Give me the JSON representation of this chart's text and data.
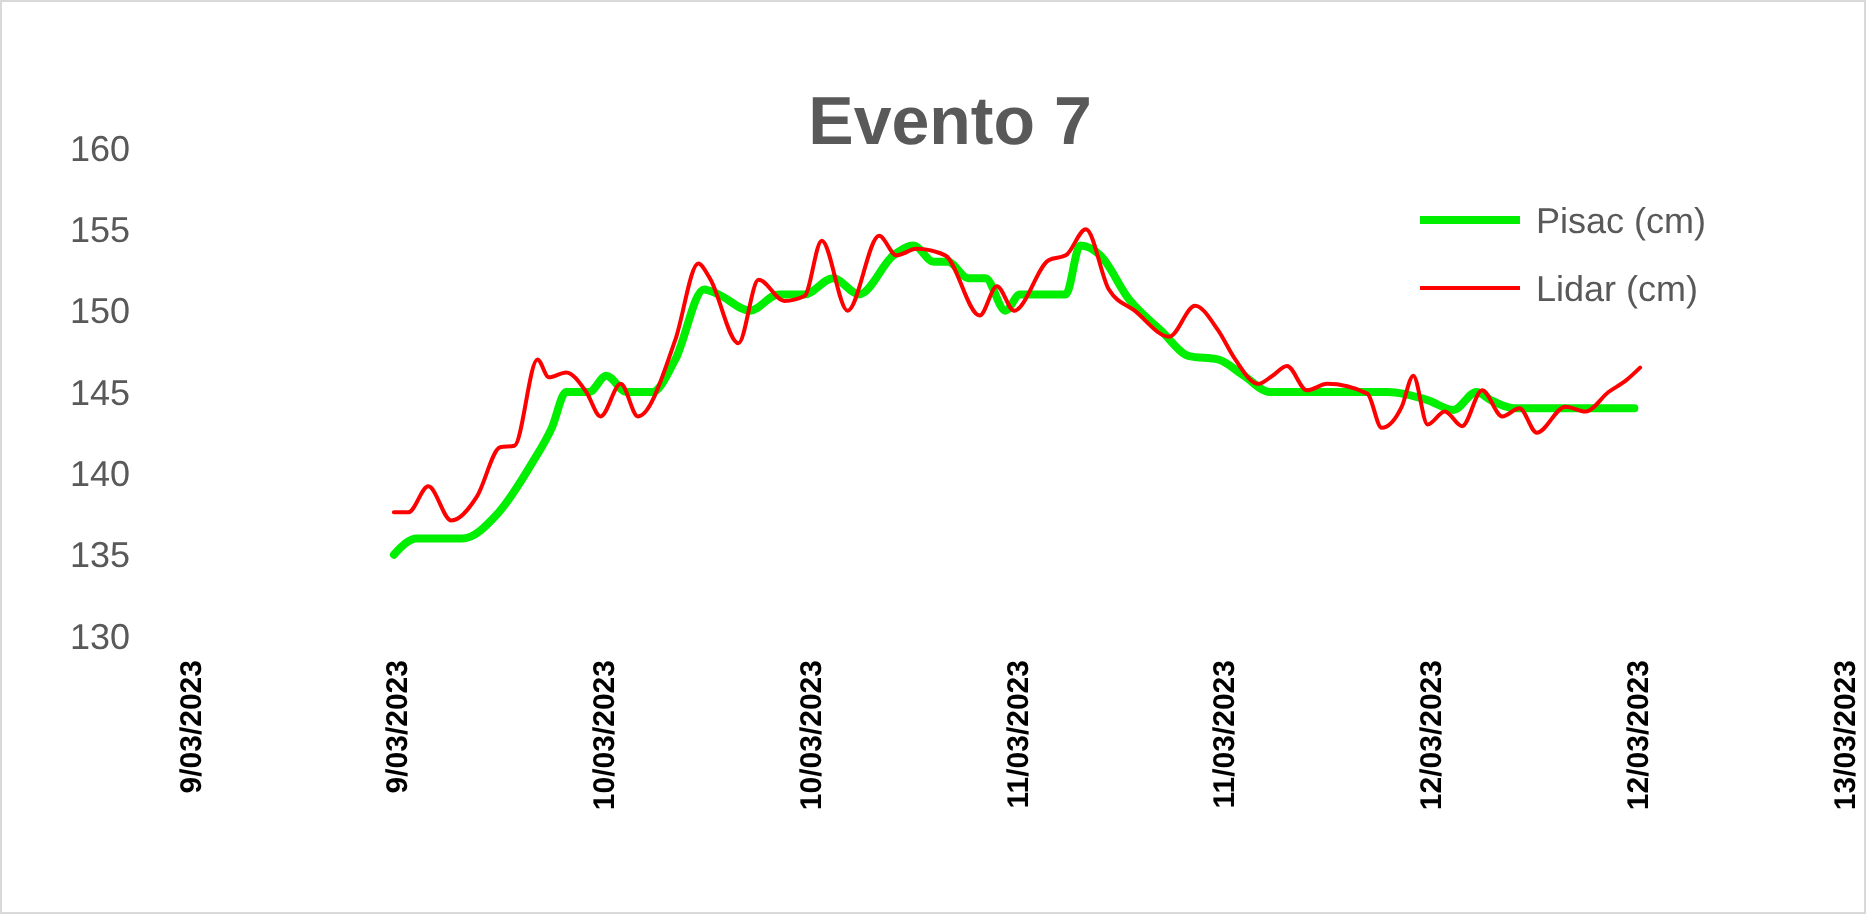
{
  "chart_data": {
    "type": "line",
    "title": "Evento 7",
    "legend": "top right",
    "grid": false,
    "marker": "none",
    "line_style": "solid",
    "xlim": [
      "2023-03-09T00:00",
      "2023-03-13T00:00"
    ],
    "xticks": [
      {
        "value": "2023-03-09T00:00",
        "label": "9/03/2023"
      },
      {
        "value": "2023-03-09T12:00",
        "label": "9/03/2023"
      },
      {
        "value": "2023-03-10T00:00",
        "label": "10/03/2023"
      },
      {
        "value": "2023-03-10T12:00",
        "label": "10/03/2023"
      },
      {
        "value": "2023-03-11T00:00",
        "label": "11/03/2023"
      },
      {
        "value": "2023-03-11T12:00",
        "label": "11/03/2023"
      },
      {
        "value": "2023-03-12T00:00",
        "label": "12/03/2023"
      },
      {
        "value": "2023-03-12T12:00",
        "label": "12/03/2023"
      },
      {
        "value": "2023-03-13T00:00",
        "label": "13/03/2023"
      }
    ],
    "ylim": [
      130,
      160
    ],
    "yticks": [
      130,
      135,
      140,
      145,
      150,
      155,
      160
    ],
    "series": [
      {
        "name": "Pisac (cm)",
        "color": "#00ee00",
        "x": [
          "2023-03-09T11:50",
          "2023-03-09T13:10",
          "2023-03-09T15:50",
          "2023-03-09T17:50",
          "2023-03-09T19:50",
          "2023-03-09T21:00",
          "2023-03-09T21:50",
          "2023-03-09T23:10",
          "2023-03-10T00:10",
          "2023-03-10T01:20",
          "2023-03-10T02:50",
          "2023-03-10T04:10",
          "2023-03-10T05:50",
          "2023-03-10T06:40",
          "2023-03-10T08:30",
          "2023-03-10T10:10",
          "2023-03-10T11:40",
          "2023-03-10T13:20",
          "2023-03-10T14:50",
          "2023-03-10T16:50",
          "2023-03-10T18:00",
          "2023-03-10T19:10",
          "2023-03-10T20:00",
          "2023-03-10T21:10",
          "2023-03-10T22:10",
          "2023-03-10T23:20",
          "2023-03-11T00:10",
          "2023-03-11T02:50",
          "2023-03-11T03:40",
          "2023-03-11T04:50",
          "2023-03-11T06:30",
          "2023-03-11T08:20",
          "2023-03-11T10:00",
          "2023-03-11T11:40",
          "2023-03-11T13:10",
          "2023-03-11T14:40",
          "2023-03-11T16:10",
          "2023-03-11T21:30",
          "2023-03-11T23:50",
          "2023-03-12T01:20",
          "2023-03-12T02:40",
          "2023-03-12T03:30",
          "2023-03-12T04:50",
          "2023-03-12T11:50"
        ],
        "values": [
          135,
          136,
          136,
          137.5,
          140.6,
          142.8,
          145,
          145,
          146,
          145,
          145,
          147,
          151.3,
          151,
          150,
          151,
          151,
          152,
          151,
          153.4,
          154,
          153,
          153,
          152,
          152,
          150,
          151,
          151,
          154,
          153.4,
          150.7,
          148.8,
          147.2,
          147,
          146,
          145,
          145,
          145,
          144.5,
          143.9,
          145,
          144.5,
          144,
          144
        ]
      },
      {
        "name": "Lidar (cm)",
        "color": "#ff0000",
        "x": [
          "2023-03-09T11:50",
          "2023-03-09T12:40",
          "2023-03-09T13:50",
          "2023-03-09T15:10",
          "2023-03-09T16:40",
          "2023-03-09T18:00",
          "2023-03-09T18:50",
          "2023-03-09T20:10",
          "2023-03-09T20:50",
          "2023-03-09T21:50",
          "2023-03-09T23:00",
          "2023-03-09T23:50",
          "2023-03-10T01:00",
          "2023-03-10T02:00",
          "2023-03-10T04:10",
          "2023-03-10T05:30",
          "2023-03-10T06:10",
          "2023-03-10T07:50",
          "2023-03-10T09:00",
          "2023-03-10T10:30",
          "2023-03-10T11:40",
          "2023-03-10T12:40",
          "2023-03-10T14:10",
          "2023-03-10T16:00",
          "2023-03-10T17:00",
          "2023-03-10T18:10",
          "2023-03-10T19:50",
          "2023-03-10T21:50",
          "2023-03-10T22:50",
          "2023-03-10T23:50",
          "2023-03-11T01:50",
          "2023-03-11T02:50",
          "2023-03-11T04:00",
          "2023-03-11T05:20",
          "2023-03-11T06:50",
          "2023-03-11T08:50",
          "2023-03-11T10:20",
          "2023-03-11T11:40",
          "2023-03-11T12:40",
          "2023-03-11T14:00",
          "2023-03-11T14:50",
          "2023-03-11T15:40",
          "2023-03-11T16:50",
          "2023-03-11T18:00",
          "2023-03-11T20:20",
          "2023-03-11T21:10",
          "2023-03-11T22:20",
          "2023-03-11T23:00",
          "2023-03-11T23:50",
          "2023-03-12T00:50",
          "2023-03-12T01:50",
          "2023-03-12T03:00",
          "2023-03-12T04:10",
          "2023-03-12T05:10",
          "2023-03-12T06:10",
          "2023-03-12T07:50",
          "2023-03-12T09:00",
          "2023-03-12T10:20",
          "2023-03-12T11:20",
          "2023-03-12T12:10"
        ],
        "values": [
          137.6,
          137.6,
          139.2,
          137.1,
          138.6,
          141.6,
          141.7,
          147,
          145.9,
          146.2,
          145,
          143.5,
          145.5,
          143.5,
          148.2,
          152.9,
          152,
          148,
          151.9,
          150.6,
          150.9,
          154.3,
          150,
          154.6,
          153.4,
          153.8,
          153.4,
          149.7,
          151.5,
          150,
          153.1,
          153.4,
          155,
          151.3,
          150,
          148.4,
          150.3,
          148.8,
          147,
          145.5,
          146,
          146.6,
          145.1,
          145.5,
          144.9,
          142.8,
          144.1,
          146,
          143,
          143.8,
          142.9,
          145.1,
          143.5,
          144,
          142.5,
          144.1,
          143.8,
          145,
          145.7,
          146.5
        ]
      }
    ]
  }
}
